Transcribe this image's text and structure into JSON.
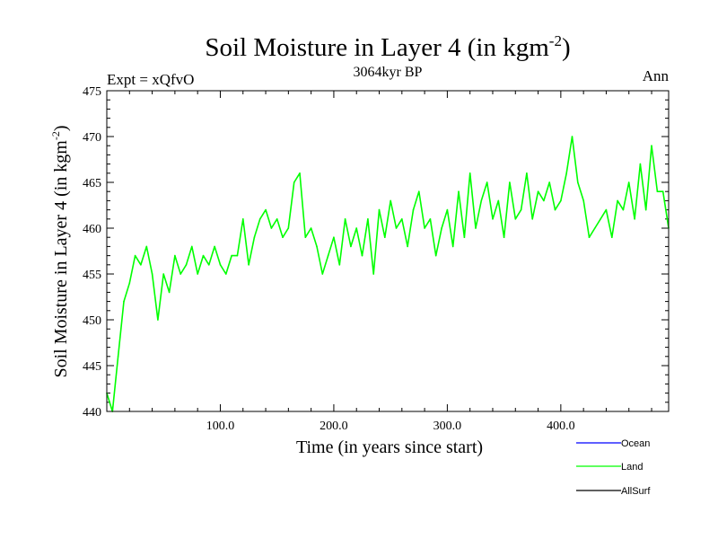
{
  "header": {
    "title_main": "Soil Moisture in Layer 4 (in kgm",
    "title_sup": "-2",
    "title_close": ")",
    "expt": "Expt = xQfvO",
    "period": "3064kyr BP",
    "season": "Ann"
  },
  "colors": {
    "background": "#ffffff",
    "axis": "#000000",
    "ocean": "#0000ff",
    "land": "#00ff00",
    "allsurf": "#000000"
  },
  "chart_data": {
    "type": "line",
    "title": "Soil Moisture in Layer 4 (in kgm-2)",
    "xlabel": "Time (in years since start)",
    "ylabel_main": "Soil Moisture in Layer 4 (in kgm",
    "ylabel_sup": "-2",
    "ylabel_close": ")",
    "xlim": [
      0,
      495
    ],
    "ylim": [
      440,
      475
    ],
    "xticks": [
      100,
      200,
      300,
      400
    ],
    "xtick_labels": [
      "100.0",
      "200.0",
      "300.0",
      "400.0"
    ],
    "yticks": [
      440,
      445,
      450,
      455,
      460,
      465,
      470,
      475
    ],
    "ytick_labels": [
      "440",
      "445",
      "450",
      "455",
      "460",
      "465",
      "470",
      "475"
    ],
    "legend": [
      {
        "name": "Ocean",
        "color": "#0000ff"
      },
      {
        "name": "Land",
        "color": "#00ff00"
      },
      {
        "name": "AllSurf",
        "color": "#000000"
      }
    ],
    "series": [
      {
        "name": "Land",
        "color": "#00ff00",
        "x": [
          0,
          5,
          10,
          15,
          20,
          25,
          30,
          35,
          40,
          45,
          50,
          55,
          60,
          65,
          70,
          75,
          80,
          85,
          90,
          95,
          100,
          105,
          110,
          115,
          120,
          125,
          130,
          135,
          140,
          145,
          150,
          155,
          160,
          165,
          170,
          175,
          180,
          185,
          190,
          195,
          200,
          205,
          210,
          215,
          220,
          225,
          230,
          235,
          240,
          245,
          250,
          255,
          260,
          265,
          270,
          275,
          280,
          285,
          290,
          295,
          300,
          305,
          310,
          315,
          320,
          325,
          330,
          335,
          340,
          345,
          350,
          355,
          360,
          365,
          370,
          375,
          380,
          385,
          390,
          395,
          400,
          405,
          410,
          415,
          420,
          425,
          430,
          435,
          440,
          445,
          450,
          455,
          460,
          465,
          470,
          475,
          480,
          485,
          490,
          495
        ],
        "values": [
          442,
          440,
          446,
          452,
          454,
          457,
          456,
          458,
          455,
          450,
          455,
          453,
          457,
          455,
          456,
          458,
          455,
          457,
          456,
          458,
          456,
          455,
          457,
          457,
          461,
          456,
          459,
          461,
          462,
          460,
          461,
          459,
          460,
          465,
          466,
          459,
          460,
          458,
          455,
          457,
          459,
          456,
          461,
          458,
          460,
          457,
          461,
          455,
          462,
          459,
          463,
          460,
          461,
          458,
          462,
          464,
          460,
          461,
          457,
          460,
          462,
          458,
          464,
          459,
          466,
          460,
          463,
          465,
          461,
          463,
          459,
          465,
          461,
          462,
          466,
          461,
          464,
          463,
          465,
          462,
          463,
          466,
          470,
          465,
          463,
          459,
          460,
          461,
          462,
          459,
          463,
          462,
          465,
          461,
          467,
          462,
          469,
          464,
          464,
          460
        ]
      }
    ]
  }
}
